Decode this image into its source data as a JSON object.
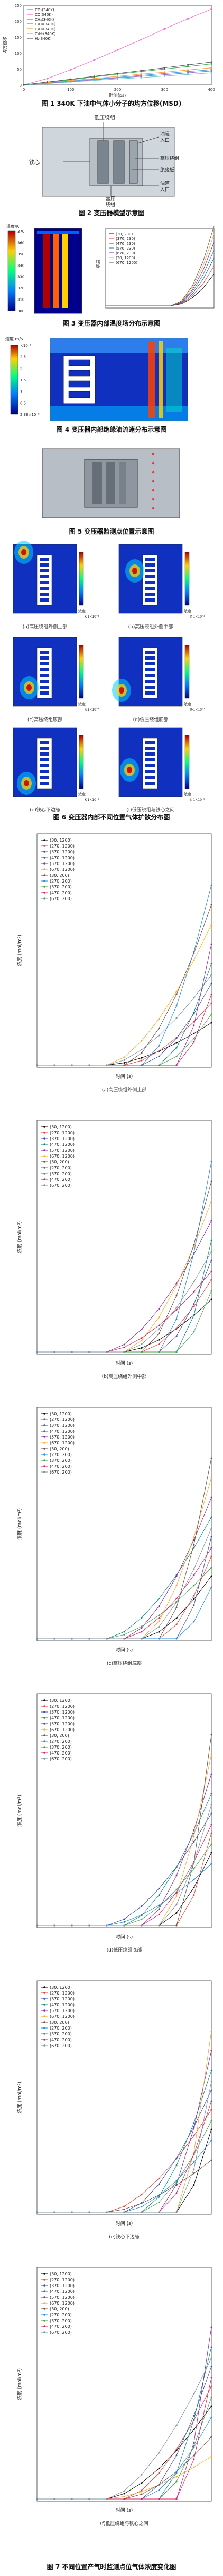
{
  "figures": {
    "fig1": {
      "caption": "图 1  340K 下油中气体小分子的均方位移(MSD)",
      "chart_data": {
        "type": "line",
        "title": "",
        "xlabel": "时间(ps)",
        "ylabel": "均方位移",
        "xlim": [
          0,
          400
        ],
        "ylim": [
          0,
          250
        ],
        "x": [
          0,
          50,
          100,
          150,
          200,
          250,
          300,
          350,
          400
        ],
        "series": [
          {
            "name": "CO₂(340K)",
            "color": "#3a9bd9",
            "values": [
              0,
              6,
              12,
              18,
              24,
              30,
              36,
              42,
              48
            ]
          },
          {
            "name": "CO(340K)",
            "color": "#ff66cc",
            "values": [
              0,
              20,
              48,
              78,
              110,
              142,
              176,
              208,
              238
            ]
          },
          {
            "name": "CH₄(340K)",
            "color": "#33aa55",
            "values": [
              0,
              8,
              16,
              25,
              34,
              42,
              50,
              58,
              66
            ]
          },
          {
            "name": "C₂H₂(340K)",
            "color": "#9966cc",
            "values": [
              0,
              5,
              10,
              16,
              22,
              27,
              32,
              38,
              44
            ]
          },
          {
            "name": "C₂H₄(340K)",
            "color": "#ff9933",
            "values": [
              0,
              7,
              14,
              20,
              27,
              34,
              40,
              47,
              54
            ]
          },
          {
            "name": "C₂H₆(340K)",
            "color": "#66cccc",
            "values": [
              0,
              4,
              9,
              14,
              19,
              23,
              28,
              33,
              38
            ]
          },
          {
            "name": "H₂(340K)",
            "color": "#555555",
            "values": [
              0,
              9,
              18,
              27,
              36,
              45,
              54,
              63,
              72
            ]
          }
        ]
      }
    },
    "fig2": {
      "caption": "图 2  变压器模型示意图",
      "labels": {
        "left": "铁心",
        "top": "低压绕组",
        "right_top": "油道",
        "right_top2": "入口",
        "right_mid1": "高压绕组",
        "right_mid2": "绝缘板",
        "bottom": "高压",
        "bottom2": "绕组",
        "right_bot": "油道",
        "right_bot2": "入口"
      }
    },
    "fig3": {
      "caption": "图 3  变压器内部温度场分布示意图",
      "colorbar_title": "温度/K",
      "colorbar_ticks": [
        "370",
        "360",
        "350",
        "340",
        "330",
        "320",
        "310",
        "300"
      ],
      "chart_data": {
        "type": "line",
        "title": "",
        "xlabel": "",
        "ylabel": "浓度",
        "legend": [
          "(30, 230)",
          "(370, 230)",
          "(470, 230)",
          "(570, 230)",
          "(670, 230)",
          "(30, 1200)",
          "(670, 1200)"
        ]
      }
    },
    "fig4": {
      "caption": "图 4  变压器内部绝缘油流速分布示意图",
      "colorbar_title": "速度\nm/s",
      "colorbar_ticks": [
        "×10⁻³",
        "2.5",
        "2",
        "1.5",
        "1",
        "0.5",
        "2.38×10⁻⁵"
      ]
    },
    "fig5": {
      "caption": "图 5  变压器监测点位置示意图"
    },
    "fig6": {
      "caption": "图 6  变压器内部不同位置气体扩散分布图",
      "panels": [
        {
          "label": "(a)高压绕组外侧上部"
        },
        {
          "label": "(b)高压绕组外侧中部"
        },
        {
          "label": "(c)高压绕组底部"
        },
        {
          "label": "(d)低压绕组底部"
        },
        {
          "label": "(e)铁心下边缘"
        },
        {
          "label": "(f)低压绕组与铁心之间"
        }
      ],
      "cb_title": "浓度\nmol/m³",
      "cb_unit": "K-1×10⁻³"
    },
    "fig7": {
      "caption": "图 7  不同位置产气时监测点位气体浓度变化图",
      "legend": [
        "(30, 1200)",
        "(270, 1200)",
        "(370, 1200)",
        "(470, 1200)",
        "(570, 1200)",
        "(670, 1200)",
        "(30, 200)",
        "(270, 200)",
        "(370, 200)",
        "(470, 200)",
        "(670, 200)"
      ],
      "colors": [
        "#000000",
        "#e53935",
        "#3949ab",
        "#00897b",
        "#8e24aa",
        "#f9a825",
        "#6d4c41",
        "#1e88e5",
        "#43a047",
        "#d81b60",
        "#78909c"
      ],
      "panels": [
        {
          "label": "(a)高压绕组外侧上部",
          "xlabel": "时间 (s)",
          "ylabel": "浓度 (mol/m³)"
        },
        {
          "label": "(b)高压绕组外侧中部",
          "xlabel": "时间 (s)",
          "ylabel": "浓度 (mol/m³)"
        },
        {
          "label": "(c)高压绕组底部",
          "xlabel": "时间 (s)",
          "ylabel": "浓度 (mol/m³)"
        },
        {
          "label": "(d)低压绕组底部",
          "xlabel": "时间 (s)",
          "ylabel": "浓度 (mol/m³)"
        },
        {
          "label": "(e)铁心下边缘",
          "xlabel": "时间 (s)",
          "ylabel": "浓度 (mol/m³)"
        },
        {
          "label": "(f)低压绕组与铁心之间",
          "xlabel": "时间 (s)",
          "ylabel": "浓度 (mol/m³)"
        }
      ]
    }
  }
}
